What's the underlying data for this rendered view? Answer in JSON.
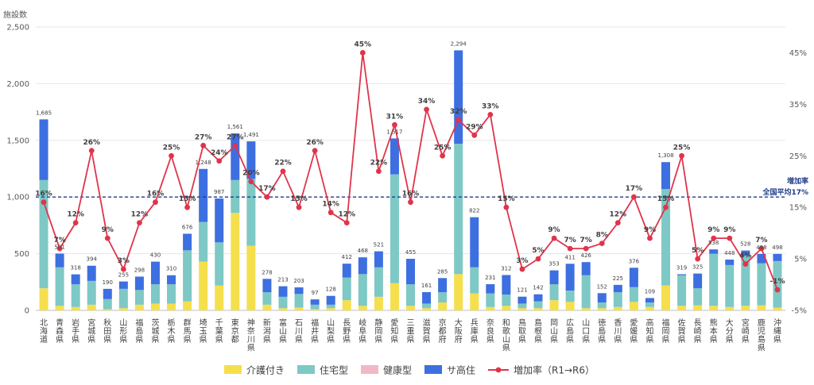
{
  "chart_data": {
    "type": "bar",
    "stacked": true,
    "ylabel": "施設数",
    "ylim": [
      0,
      2500
    ],
    "y_ticks": [
      "0",
      "500",
      "1,000",
      "1,500",
      "2,000",
      "2,500"
    ],
    "y2lim": [
      -5,
      50
    ],
    "y2_ticks": [
      "-5%",
      "5%",
      "15%",
      "25%",
      "35%",
      "45%"
    ],
    "grid": true,
    "legend_position": "bottom",
    "categories": [
      "北海道",
      "青森県",
      "岩手県",
      "宮城県",
      "秋田県",
      "山形県",
      "福島県",
      "茨城県",
      "栃木県",
      "群馬県",
      "埼玉県",
      "千葉県",
      "東京都",
      "神奈川県",
      "新潟県",
      "富山県",
      "石川県",
      "福井県",
      "山梨県",
      "長野県",
      "岐阜県",
      "静岡県",
      "愛知県",
      "三重県",
      "滋賀県",
      "京都府",
      "大阪府",
      "兵庫県",
      "奈良県",
      "和歌山県",
      "鳥取県",
      "島根県",
      "岡山県",
      "広島県",
      "山口県",
      "徳島県",
      "香川県",
      "愛媛県",
      "高知県",
      "福岡県",
      "佐賀県",
      "長崎県",
      "熊本県",
      "大分県",
      "宮崎県",
      "鹿児島県",
      "沖縄県"
    ],
    "totals": [
      "1,685",
      "501",
      "318",
      "394",
      "190",
      "255",
      "298",
      "430",
      "310",
      "676",
      "1,248",
      "987",
      "1,561",
      "1,491",
      "278",
      "213",
      "203",
      "97",
      "128",
      "412",
      "468",
      "521",
      "1,517",
      "455",
      "161",
      "285",
      "2,294",
      "822",
      "231",
      "312",
      "121",
      "142",
      "353",
      "411",
      "426",
      "152",
      "225",
      "376",
      "109",
      "1,308",
      "319",
      "325",
      "538",
      "448",
      "528",
      "498",
      "498"
    ],
    "rate_labels": [
      "16%",
      "7%",
      "12%",
      "26%",
      "9%",
      "3%",
      "12%",
      "16%",
      "25%",
      "15%",
      "27%",
      "24%",
      "27%",
      "20%",
      "17%",
      "22%",
      "15%",
      "26%",
      "14%",
      "12%",
      "45%",
      "22%",
      "31%",
      "16%",
      "34%",
      "25%",
      "32%",
      "29%",
      "33%",
      "15%",
      "3%",
      "5%",
      "9%",
      "7%",
      "7%",
      "8%",
      "12%",
      "17%",
      "9%",
      "15%",
      "25%",
      "5%",
      "9%",
      "9%",
      "4%",
      "7%",
      "-1%"
    ],
    "series": [
      {
        "name": "介護付き",
        "color": "#F5DF4D",
        "values": [
          195,
          40,
          30,
          50,
          10,
          20,
          50,
          60,
          60,
          80,
          430,
          220,
          860,
          570,
          50,
          20,
          25,
          10,
          20,
          90,
          40,
          120,
          240,
          40,
          20,
          70,
          320,
          150,
          30,
          40,
          20,
          20,
          90,
          75,
          20,
          20,
          30,
          75,
          30,
          220,
          40,
          45,
          40,
          30,
          40,
          45,
          25
        ]
      },
      {
        "name": "住宅型",
        "color": "#7EC8C5",
        "values": [
          955,
          340,
          200,
          210,
          90,
          170,
          130,
          170,
          170,
          450,
          350,
          380,
          290,
          590,
          110,
          100,
          120,
          40,
          30,
          200,
          280,
          260,
          960,
          190,
          40,
          90,
          1150,
          230,
          120,
          100,
          40,
          60,
          140,
          100,
          290,
          50,
          130,
          130,
          40,
          850,
          270,
          150,
          460,
          370,
          440,
          370,
          410
        ]
      },
      {
        "name": "健康型",
        "color": "#F2B8C6",
        "values": [
          0,
          0,
          0,
          0,
          0,
          0,
          0,
          0,
          0,
          0,
          0,
          0,
          0,
          0,
          0,
          0,
          0,
          0,
          0,
          0,
          0,
          0,
          0,
          0,
          0,
          0,
          0,
          0,
          0,
          0,
          0,
          0,
          0,
          0,
          0,
          0,
          0,
          0,
          0,
          0,
          0,
          0,
          0,
          0,
          0,
          0,
          0
        ]
      },
      {
        "name": "サ高住",
        "color": "#3D6FE0",
        "values": [
          535,
          121,
          88,
          134,
          90,
          65,
          118,
          200,
          80,
          146,
          468,
          387,
          411,
          331,
          118,
          93,
          58,
          47,
          78,
          122,
          148,
          141,
          317,
          225,
          101,
          125,
          824,
          442,
          81,
          172,
          61,
          62,
          123,
          236,
          116,
          82,
          65,
          171,
          39,
          238,
          9,
          130,
          38,
          48,
          48,
          83,
          63
        ]
      },
      {
        "name": "増加率（R1→R6）",
        "type": "line",
        "color": "#E0344B",
        "values": [
          16,
          7,
          12,
          26,
          9,
          3,
          12,
          16,
          25,
          15,
          27,
          24,
          27,
          20,
          17,
          22,
          15,
          26,
          14,
          12,
          45,
          22,
          31,
          16,
          34,
          25,
          32,
          29,
          33,
          15,
          3,
          5,
          9,
          7,
          7,
          8,
          12,
          17,
          9,
          15,
          25,
          5,
          9,
          9,
          4,
          7,
          -1
        ]
      }
    ],
    "reference_line": {
      "value": 17,
      "label_line1": "増加率",
      "label_line2": "全国平均17%"
    }
  }
}
